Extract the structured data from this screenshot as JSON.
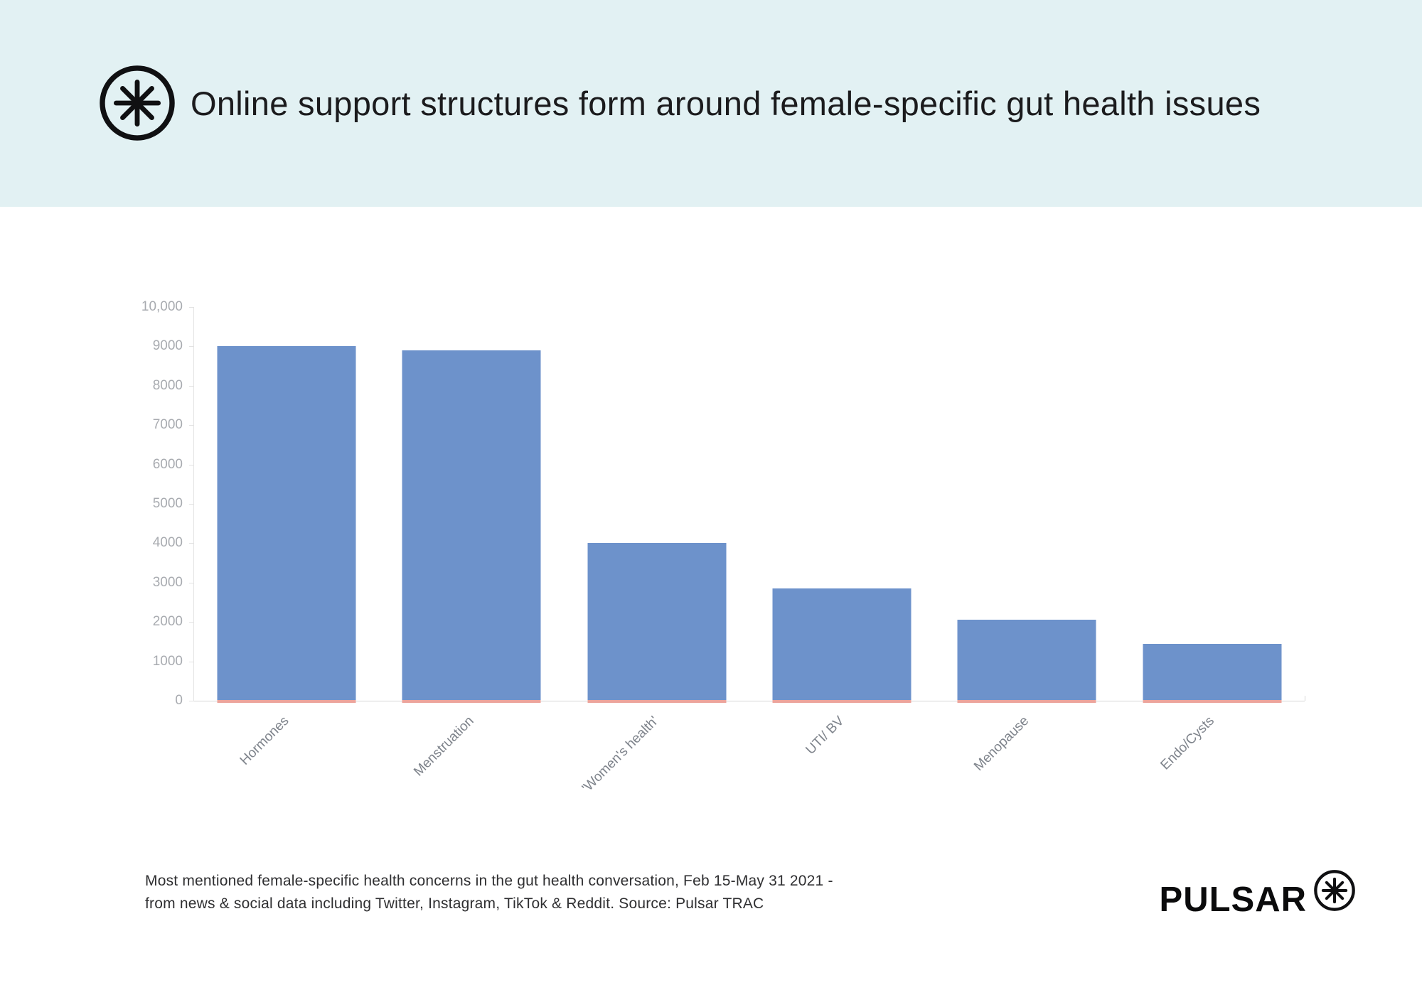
{
  "header": {
    "title": "Online support structures form around female-specific gut health issues",
    "band_color": "#e2f1f3"
  },
  "chart_data": {
    "type": "bar",
    "title": "Online support structures form around female-specific gut health issues",
    "categories": [
      "Hormones",
      "Menstruation",
      "'Women's health'",
      "UTI/ BV",
      "Menopause",
      "Endo/Cysts"
    ],
    "values": [
      9000,
      8900,
      4000,
      2850,
      2050,
      1450
    ],
    "xlabel": "",
    "ylabel": "",
    "ylim": [
      0,
      10000
    ],
    "yticks": [
      0,
      1000,
      2000,
      3000,
      4000,
      5000,
      6000,
      7000,
      8000,
      9000,
      10000
    ],
    "ytick_labels": [
      "0",
      "1000",
      "2000",
      "3000",
      "4000",
      "5000",
      "6000",
      "7000",
      "8000",
      "9000",
      "10,000"
    ],
    "grid": false,
    "legend": "none",
    "bar_color": "#6d92cb",
    "base_accent_color": "#eca49c"
  },
  "footer": {
    "caption_line1": "Most mentioned female-specific health concerns in  the gut health conversation, Feb 15-May 31 2021 -",
    "caption_line2": "from news & social data including Twitter, Instagram, TikTok & Reddit. Source: Pulsar TRAC",
    "brand": "PULSAR"
  }
}
